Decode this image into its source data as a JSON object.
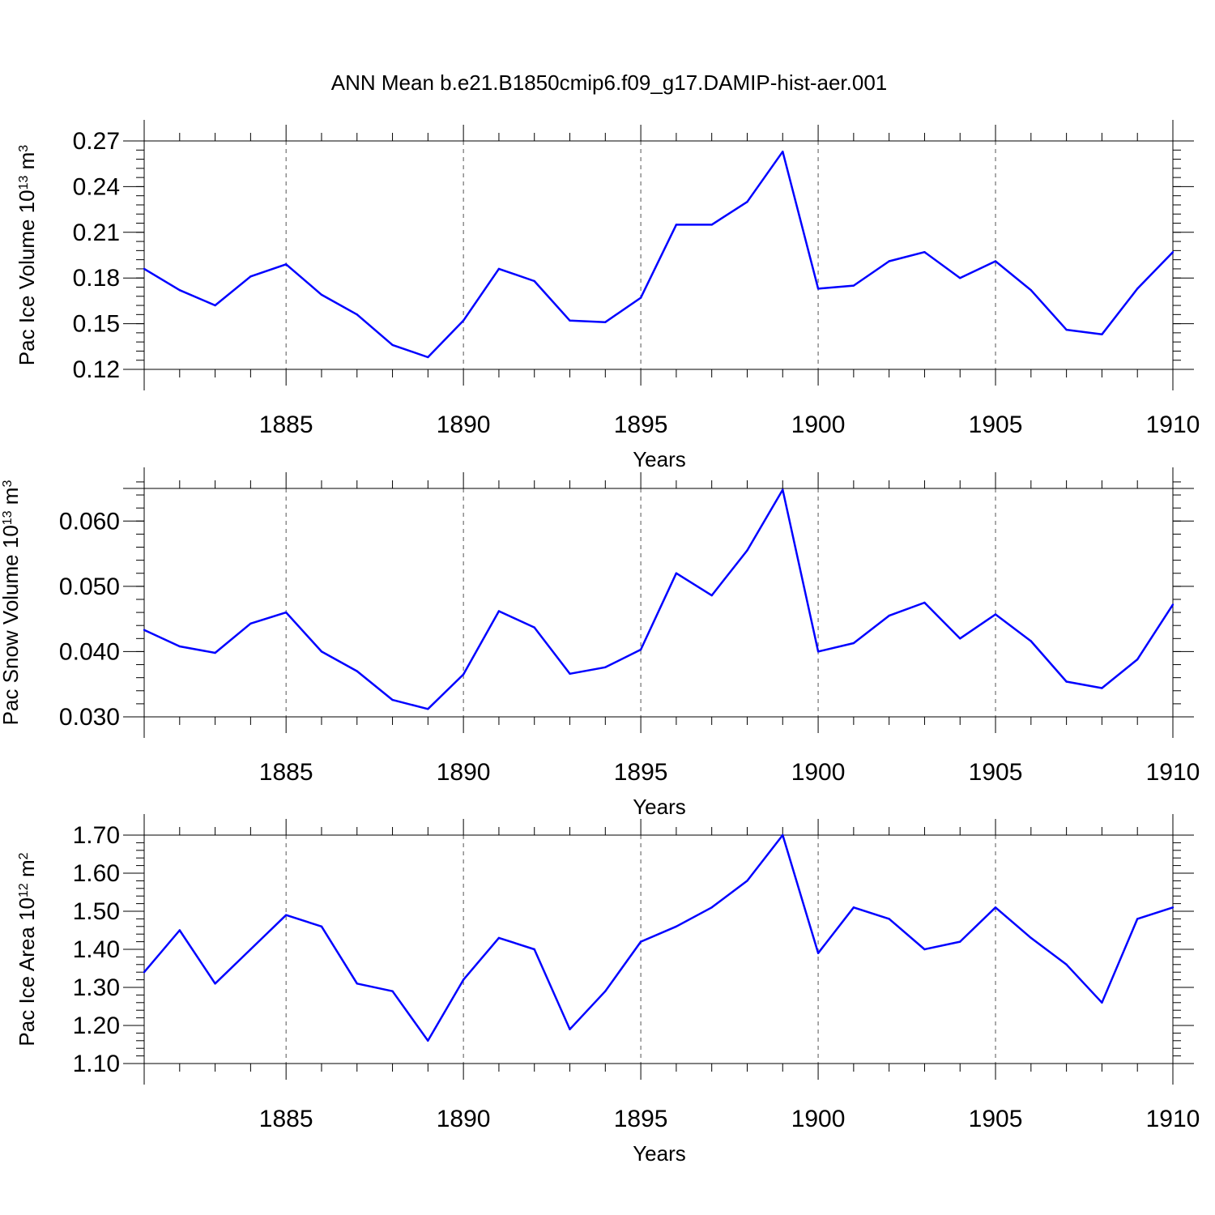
{
  "title": "ANN Mean b.e21.B1850cmip6.f09_g17.DAMIP-hist-aer.001",
  "line_color": "#0000ff",
  "chart_data": [
    {
      "type": "line",
      "ylabel": {
        "base": "Pac Ice Volume 10",
        "sup1": "13",
        "mid": " m",
        "sup2": "3"
      },
      "xlabel": "Years",
      "xlim": [
        1881,
        1910
      ],
      "ylim": [
        0.12,
        0.27
      ],
      "yticks": [
        0.12,
        0.15,
        0.18,
        0.21,
        0.24,
        0.27
      ],
      "ytick_labels": [
        "0.12",
        "0.15",
        "0.18",
        "0.21",
        "0.24",
        "0.27"
      ],
      "yminor_step": 0.006,
      "xticks": [
        1885,
        1890,
        1895,
        1900,
        1905,
        1910
      ],
      "xtick_labels": [
        "1885",
        "1890",
        "1895",
        "1900",
        "1905",
        "1910"
      ],
      "grid": "dashed vertical at major x ticks",
      "x": [
        1881,
        1882,
        1883,
        1884,
        1885,
        1886,
        1887,
        1888,
        1889,
        1890,
        1891,
        1892,
        1893,
        1894,
        1895,
        1896,
        1897,
        1898,
        1899,
        1900,
        1901,
        1902,
        1903,
        1904,
        1905,
        1906,
        1907,
        1908,
        1909,
        1910
      ],
      "values": [
        0.186,
        0.172,
        0.162,
        0.181,
        0.189,
        0.169,
        0.156,
        0.136,
        0.128,
        0.152,
        0.186,
        0.178,
        0.152,
        0.151,
        0.167,
        0.215,
        0.215,
        0.23,
        0.263,
        0.173,
        0.175,
        0.191,
        0.197,
        0.18,
        0.191,
        0.172,
        0.146,
        0.143,
        0.173,
        0.197
      ]
    },
    {
      "type": "line",
      "ylabel": {
        "base": "Pac Snow Volume 10",
        "sup1": "13",
        "mid": " m",
        "sup2": "3"
      },
      "xlabel": "Years",
      "xlim": [
        1881,
        1910
      ],
      "ylim": [
        0.03,
        0.065
      ],
      "yticks": [
        0.03,
        0.04,
        0.05,
        0.06
      ],
      "ytick_labels": [
        "0.030",
        "0.040",
        "0.050",
        "0.060"
      ],
      "yminor_step": 0.002,
      "xticks": [
        1885,
        1890,
        1895,
        1900,
        1905,
        1910
      ],
      "xtick_labels": [
        "1885",
        "1890",
        "1895",
        "1900",
        "1905",
        "1910"
      ],
      "grid": "dashed vertical at major x ticks",
      "x": [
        1881,
        1882,
        1883,
        1884,
        1885,
        1886,
        1887,
        1888,
        1889,
        1890,
        1891,
        1892,
        1893,
        1894,
        1895,
        1896,
        1897,
        1898,
        1899,
        1900,
        1901,
        1902,
        1903,
        1904,
        1905,
        1906,
        1907,
        1908,
        1909,
        1910
      ],
      "values": [
        0.0433,
        0.0408,
        0.0398,
        0.0443,
        0.046,
        0.04,
        0.037,
        0.0326,
        0.0312,
        0.0365,
        0.0462,
        0.0437,
        0.0366,
        0.0376,
        0.0403,
        0.052,
        0.0486,
        0.0555,
        0.0648,
        0.04,
        0.0413,
        0.0455,
        0.0475,
        0.042,
        0.0457,
        0.0416,
        0.0354,
        0.0344,
        0.0388,
        0.0472
      ]
    },
    {
      "type": "line",
      "ylabel": {
        "base": "Pac Ice Area 10",
        "sup1": "12",
        "mid": " m",
        "sup2": "2"
      },
      "xlabel": "Years",
      "xlim": [
        1881,
        1910
      ],
      "ylim": [
        1.1,
        1.7
      ],
      "yticks": [
        1.1,
        1.2,
        1.3,
        1.4,
        1.5,
        1.6,
        1.7
      ],
      "ytick_labels": [
        "1.10",
        "1.20",
        "1.30",
        "1.40",
        "1.50",
        "1.60",
        "1.70"
      ],
      "yminor_step": 0.02,
      "xticks": [
        1885,
        1890,
        1895,
        1900,
        1905,
        1910
      ],
      "xtick_labels": [
        "1885",
        "1890",
        "1895",
        "1900",
        "1905",
        "1910"
      ],
      "grid": "dashed vertical at major x ticks",
      "x": [
        1881,
        1882,
        1883,
        1884,
        1885,
        1886,
        1887,
        1888,
        1889,
        1890,
        1891,
        1892,
        1893,
        1894,
        1895,
        1896,
        1897,
        1898,
        1899,
        1900,
        1901,
        1902,
        1903,
        1904,
        1905,
        1906,
        1907,
        1908,
        1909,
        1910
      ],
      "values": [
        1.34,
        1.45,
        1.31,
        1.4,
        1.49,
        1.46,
        1.31,
        1.29,
        1.16,
        1.32,
        1.43,
        1.4,
        1.19,
        1.29,
        1.42,
        1.46,
        1.51,
        1.58,
        1.7,
        1.39,
        1.51,
        1.48,
        1.4,
        1.42,
        1.51,
        1.43,
        1.36,
        1.26,
        1.48,
        1.51
      ]
    }
  ]
}
